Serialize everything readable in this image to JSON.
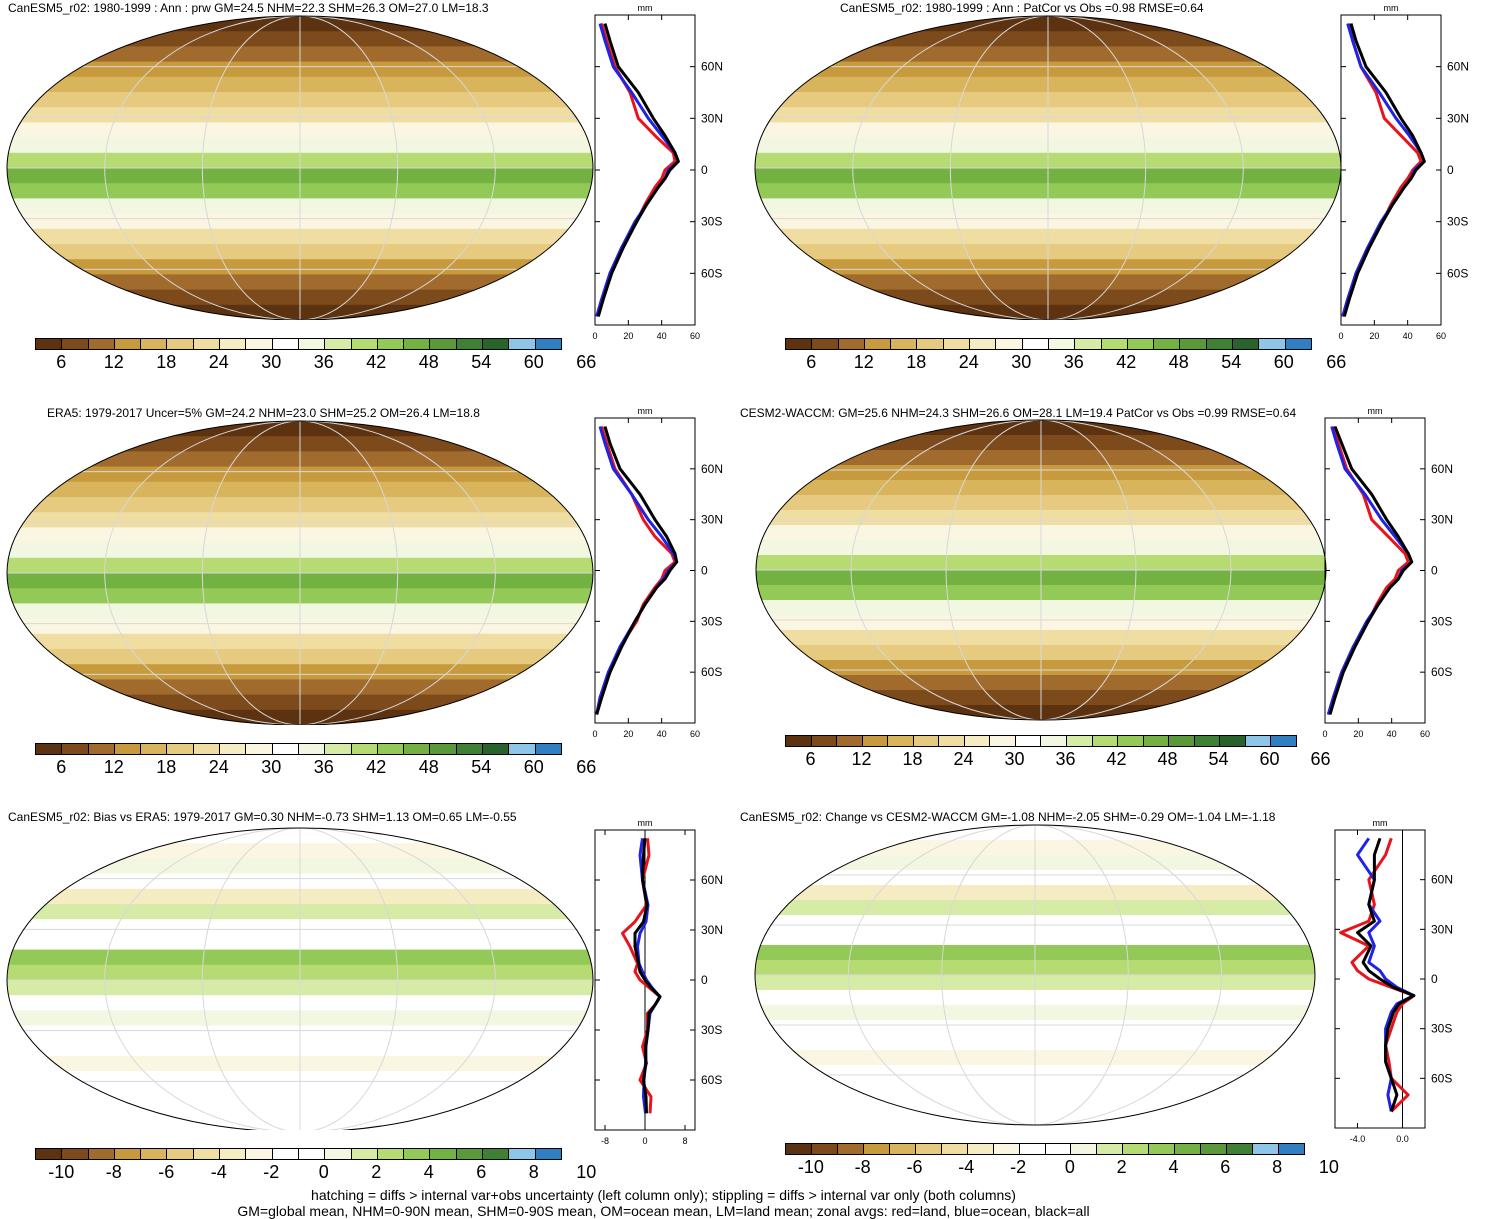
{
  "panels": [
    {
      "title": "CanESM5_r02: 1980-1999 : Ann : prw GM=24.5 NHM=22.3 SHM=26.3 OM=27.0 LM=18.3",
      "kind": "mean",
      "colorbar": {
        "labels": [
          "6",
          "12",
          "18",
          "24",
          "30",
          "36",
          "42",
          "48",
          "54",
          "60",
          "66"
        ]
      },
      "zonal": {
        "unit": "mm",
        "xticks": [
          "0",
          "20",
          "40",
          "60"
        ],
        "xlim": [
          0,
          60
        ],
        "yticks": [
          "60N",
          "30N",
          "0",
          "30S",
          "60S"
        ]
      }
    },
    {
      "title": "CanESM5_r02: 1980-1999 : Ann : PatCor vs Obs =0.98 RMSE=0.64",
      "kind": "mean",
      "colorbar": {
        "labels": [
          "6",
          "12",
          "18",
          "24",
          "30",
          "36",
          "42",
          "48",
          "54",
          "60",
          "66"
        ]
      },
      "zonal": {
        "unit": "mm",
        "xticks": [
          "0",
          "20",
          "40",
          "60"
        ],
        "xlim": [
          0,
          60
        ],
        "yticks": [
          "60N",
          "30N",
          "0",
          "30S",
          "60S"
        ]
      }
    },
    {
      "title": "ERA5: 1979-2017 Uncer=5% GM=24.2 NHM=23.0 SHM=25.2 OM=26.4 LM=18.8",
      "kind": "mean",
      "colorbar": {
        "labels": [
          "6",
          "12",
          "18",
          "24",
          "30",
          "36",
          "42",
          "48",
          "54",
          "60",
          "66"
        ]
      },
      "zonal": {
        "unit": "mm",
        "xticks": [
          "0",
          "20",
          "40",
          "60"
        ],
        "xlim": [
          0,
          60
        ],
        "yticks": [
          "60N",
          "30N",
          "0",
          "30S",
          "60S"
        ]
      }
    },
    {
      "title": "CESM2-WACCM: GM=25.6 NHM=24.3 SHM=26.6 OM=28.1 LM=19.4 PatCor vs Obs =0.99 RMSE=0.64",
      "kind": "mean",
      "colorbar": {
        "labels": [
          "6",
          "12",
          "18",
          "24",
          "30",
          "36",
          "42",
          "48",
          "54",
          "60",
          "66"
        ]
      },
      "zonal": {
        "unit": "mm",
        "xticks": [
          "0",
          "20",
          "40",
          "60"
        ],
        "xlim": [
          0,
          60
        ],
        "yticks": [
          "60N",
          "30N",
          "0",
          "30S",
          "60S"
        ]
      }
    },
    {
      "title": "CanESM5_r02: Bias vs ERA5: 1979-2017 GM=0.30 NHM=-0.73 SHM=1.13 OM=0.65 LM=-0.55",
      "kind": "diff",
      "colorbar": {
        "labels": [
          "-10",
          "-8",
          "-6",
          "-4",
          "-2",
          "0",
          "2",
          "4",
          "6",
          "8",
          "10"
        ]
      },
      "zonal": {
        "unit": "mm",
        "xticks": [
          "-8",
          "0",
          "8"
        ],
        "xlim": [
          -10,
          10
        ],
        "yticks": [
          "60N",
          "30N",
          "0",
          "30S",
          "60S"
        ]
      }
    },
    {
      "title": "CanESM5_r02: Change vs CESM2-WACCM GM=-1.08 NHM=-2.05 SHM=-0.29 OM=-1.04 LM=-1.18",
      "kind": "diff",
      "colorbar": {
        "labels": [
          "-10",
          "-8",
          "-6",
          "-4",
          "-2",
          "0",
          "2",
          "4",
          "6",
          "8",
          "10"
        ]
      },
      "zonal": {
        "unit": "mm",
        "xticks": [
          "-4.0",
          "0.0"
        ],
        "xlim": [
          -6,
          2
        ],
        "yticks": [
          "60N",
          "30N",
          "0",
          "30S",
          "60S"
        ]
      }
    }
  ],
  "colors": {
    "mean_palette": [
      "#5c3210",
      "#7d4a1c",
      "#a06b2c",
      "#c89a3e",
      "#d8b45c",
      "#e6ca80",
      "#efdda2",
      "#f6ecc4",
      "#fbf6e2",
      "#ffffff",
      "#f1f7e1",
      "#d6eba6",
      "#b5db72",
      "#92c957",
      "#73b142",
      "#59993a",
      "#3e8034",
      "#28632c",
      "#8ec6ea",
      "#2f7fc2"
    ],
    "diff_palette": [
      "#5c3210",
      "#7d4a1c",
      "#a06b2c",
      "#c89a3e",
      "#d8b45c",
      "#e6ca80",
      "#efdda2",
      "#f6ecc4",
      "#fbf6e2",
      "#ffffff",
      "#ffffff",
      "#f1f7e1",
      "#d6eba6",
      "#b5db72",
      "#92c957",
      "#73b142",
      "#59993a",
      "#3e8034",
      "#8ec6ea",
      "#2f7fc2"
    ],
    "land": "#e8141c",
    "ocean": "#1e23e6",
    "all": "#000000"
  },
  "chart_data": [
    {
      "type": "line",
      "panel": "CanESM5_r02: 1980-1999 : Ann : prw GM=24.5 NHM=22.3 SHM=26.3 OM=27.0 LM=18.3",
      "xlabel": "mm",
      "xlim": [
        0,
        60
      ],
      "ylim": [
        -90,
        90
      ],
      "y": [
        85,
        75,
        60,
        45,
        30,
        20,
        10,
        5,
        0,
        -5,
        -10,
        -20,
        -30,
        -45,
        -60,
        -75,
        -85
      ],
      "series": [
        {
          "values": [
            4,
            7,
            12,
            21,
            26,
            36,
            47,
            48,
            42,
            40,
            36,
            30,
            25,
            16,
            9,
            4,
            1
          ]
        },
        {
          "values": [
            3,
            6,
            11,
            22,
            32,
            40,
            48,
            50,
            44,
            42,
            38,
            31,
            24,
            16,
            9,
            4,
            1
          ]
        },
        {
          "values": [
            6,
            9,
            14,
            26,
            35,
            42,
            48,
            50,
            45,
            42,
            38,
            31,
            25,
            17,
            10,
            5,
            2
          ]
        }
      ]
    },
    {
      "type": "line",
      "panel": "CanESM5_r02: 1980-1999 : Ann : PatCor vs Obs =0.98 RMSE=0.64",
      "xlabel": "mm",
      "xlim": [
        0,
        60
      ],
      "ylim": [
        -90,
        90
      ],
      "y": [
        85,
        75,
        60,
        45,
        30,
        20,
        10,
        5,
        0,
        -5,
        -10,
        -20,
        -30,
        -45,
        -60,
        -75,
        -85
      ],
      "series": [
        {
          "values": [
            5,
            7,
            12,
            21,
            26,
            36,
            46,
            48,
            43,
            40,
            36,
            30,
            25,
            16,
            9,
            4,
            1
          ]
        },
        {
          "values": [
            4,
            7,
            12,
            23,
            33,
            41,
            48,
            50,
            44,
            42,
            38,
            31,
            24,
            16,
            9,
            4,
            1
          ]
        },
        {
          "values": [
            6,
            9,
            15,
            27,
            36,
            43,
            48,
            50,
            45,
            42,
            38,
            31,
            25,
            17,
            10,
            5,
            2
          ]
        }
      ]
    },
    {
      "type": "line",
      "panel": "ERA5: 1979-2017 Uncer=5% GM=24.2 NHM=23.0 SHM=25.2 OM=26.4 LM=18.8",
      "xlabel": "mm",
      "xlim": [
        0,
        60
      ],
      "ylim": [
        -90,
        90
      ],
      "y": [
        85,
        75,
        60,
        45,
        30,
        20,
        10,
        5,
        0,
        -5,
        -10,
        -20,
        -30,
        -45,
        -60,
        -75,
        -85
      ],
      "series": [
        {
          "values": [
            4,
            7,
            12,
            22,
            29,
            36,
            46,
            48,
            42,
            40,
            36,
            29,
            25,
            15,
            9,
            3,
            1
          ]
        },
        {
          "values": [
            3,
            6,
            11,
            22,
            32,
            40,
            47,
            49,
            44,
            41,
            37,
            30,
            24,
            15,
            8,
            3,
            1
          ]
        },
        {
          "values": [
            6,
            9,
            15,
            27,
            36,
            43,
            48,
            49,
            45,
            42,
            37,
            30,
            24,
            16,
            9,
            4,
            1
          ]
        }
      ]
    },
    {
      "type": "line",
      "panel": "CESM2-WACCM: GM=25.6 NHM=24.3 SHM=26.6 OM=28.1 LM=19.4 PatCor vs Obs =0.99 RMSE=0.64",
      "xlabel": "mm",
      "xlim": [
        0,
        60
      ],
      "ylim": [
        -90,
        90
      ],
      "y": [
        85,
        75,
        60,
        45,
        30,
        20,
        10,
        5,
        0,
        -5,
        -10,
        -20,
        -30,
        -45,
        -60,
        -75,
        -85
      ],
      "series": [
        {
          "values": [
            5,
            8,
            13,
            23,
            28,
            38,
            48,
            50,
            44,
            42,
            37,
            31,
            26,
            17,
            10,
            5,
            2
          ]
        },
        {
          "values": [
            4,
            7,
            12,
            24,
            34,
            42,
            50,
            52,
            46,
            44,
            39,
            32,
            25,
            17,
            10,
            5,
            2
          ]
        },
        {
          "values": [
            6,
            10,
            16,
            28,
            37,
            44,
            50,
            52,
            47,
            44,
            39,
            32,
            26,
            18,
            11,
            6,
            3
          ]
        }
      ]
    },
    {
      "type": "line",
      "panel": "CanESM5_r02: Bias vs ERA5: 1979-2017 GM=0.30 NHM=-0.73 SHM=1.13 OM=0.65 LM=-0.55",
      "xlabel": "mm",
      "xlim": [
        -10,
        10
      ],
      "ylim": [
        -90,
        90
      ],
      "y": [
        85,
        75,
        60,
        45,
        35,
        28,
        20,
        10,
        5,
        0,
        -5,
        -10,
        -15,
        -20,
        -30,
        -40,
        -50,
        -60,
        -70,
        -80
      ],
      "series": [
        {
          "values": [
            0.5,
            0.8,
            -0.5,
            0.3,
            -2.0,
            -4.5,
            -3.0,
            -1.5,
            -2.0,
            -1.0,
            1.0,
            3.0,
            2.0,
            0.5,
            0.5,
            -0.5,
            0.3,
            -1.0,
            1.2,
            1.0
          ]
        },
        {
          "values": [
            -0.5,
            -1.0,
            -0.5,
            0.6,
            0.2,
            -1.0,
            -1.5,
            -1.2,
            -0.5,
            0.3,
            1.5,
            3.0,
            2.0,
            1.0,
            0.6,
            0.2,
            0.1,
            -0.2,
            -0.3,
            0.1
          ]
        },
        {
          "values": [
            0.0,
            -0.3,
            -0.5,
            0.4,
            -0.3,
            -2.0,
            -2.0,
            -1.3,
            -1.0,
            0.0,
            1.3,
            3.0,
            2.0,
            0.8,
            0.6,
            0.1,
            0.2,
            -0.3,
            0.2,
            0.3
          ]
        }
      ]
    },
    {
      "type": "line",
      "panel": "CanESM5_r02: Change vs CESM2-WACCM GM=-1.08 NHM=-2.05 SHM=-0.29 OM=-1.04 LM=-1.18",
      "xlabel": "mm",
      "xlim": [
        -6,
        2
      ],
      "ylim": [
        -90,
        90
      ],
      "y": [
        85,
        75,
        60,
        45,
        35,
        28,
        20,
        10,
        5,
        0,
        -5,
        -10,
        -15,
        -20,
        -30,
        -40,
        -50,
        -60,
        -70,
        -80
      ],
      "series": [
        {
          "values": [
            -1.0,
            -1.5,
            -3.0,
            -2.5,
            -3.0,
            -5.5,
            -3.0,
            -4.5,
            -4.0,
            -3.0,
            -1.0,
            1.0,
            0.0,
            -0.5,
            -1.0,
            -1.5,
            -1.2,
            -1.0,
            0.5,
            -1.0
          ]
        },
        {
          "values": [
            -3.0,
            -4.0,
            -2.5,
            -3.0,
            -2.0,
            -3.0,
            -2.5,
            -3.0,
            -2.0,
            -1.5,
            -0.5,
            1.0,
            -0.5,
            -1.0,
            -1.5,
            -1.5,
            -1.5,
            -1.0,
            -1.3,
            -1.0
          ]
        },
        {
          "values": [
            -2.0,
            -2.5,
            -2.5,
            -3.0,
            -2.5,
            -4.0,
            -2.8,
            -3.5,
            -3.0,
            -2.0,
            -0.8,
            1.0,
            -0.3,
            -0.8,
            -1.3,
            -1.5,
            -1.5,
            -1.0,
            -0.5,
            -1.0
          ]
        }
      ]
    }
  ],
  "footer": {
    "line1": "hatching = diffs > internal var+obs uncertainty (left column only); stippling = diffs > internal var only (both columns)",
    "line2": "GM=global mean, NHM=0-90N mean, SHM=0-90S mean, OM=ocean mean, LM=land mean; zonal avgs: red=land, blue=ocean, black=all"
  }
}
